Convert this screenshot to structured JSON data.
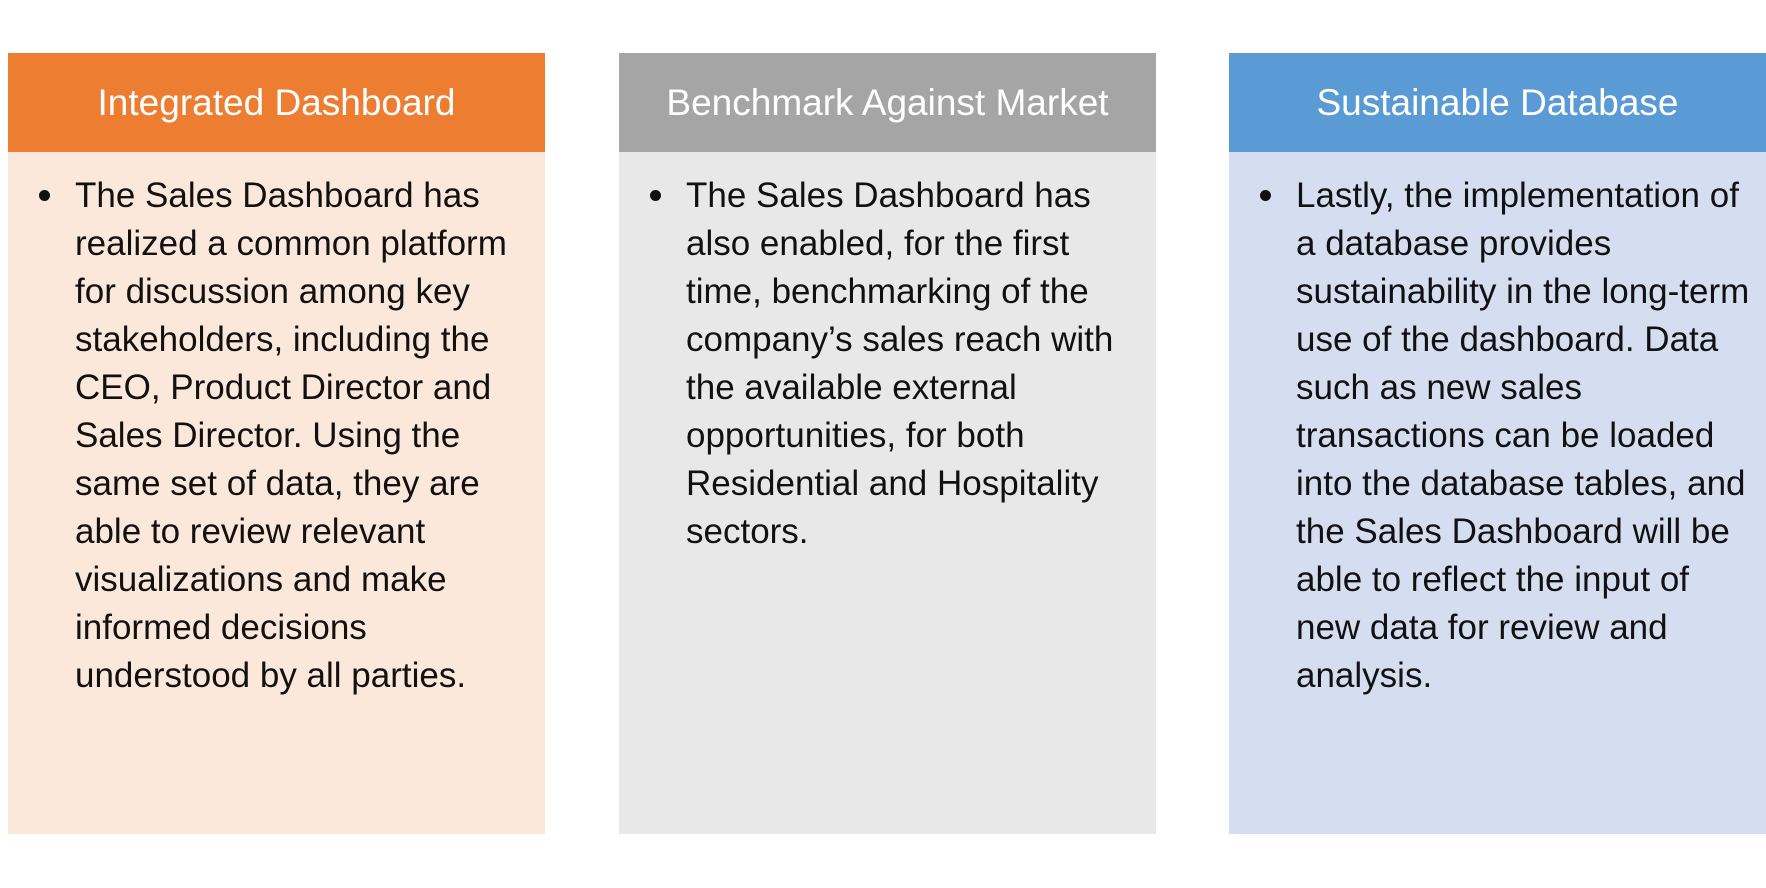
{
  "cards": [
    {
      "title": "Integrated Dashboard",
      "header_color": "#ED7D31",
      "body_color": "#FBE8DA",
      "bullet": "The Sales Dashboard has realized a common platform for discussion among key stakeholders, including the CEO, Product Director and Sales Director. Using the same set of data, they are able to review relevant visualizations and make informed decisions understood by all parties."
    },
    {
      "title": "Benchmark Against Market",
      "header_color": "#A5A5A5",
      "body_color": "#E8E8E8",
      "bullet": "The Sales Dashboard has also enabled, for the first time, benchmarking of the company’s sales reach with the available external opportunities, for both Residential and Hospitality sectors."
    },
    {
      "title": "Sustainable Database",
      "header_color": "#5B9BD5",
      "body_color": "#D5DEF0",
      "bullet": "Lastly, the implementation of a database provides sustainability in the long-term use of the dashboard. Data such as new sales transactions can be loaded into the database tables, and the Sales Dashboard will be able to reflect the input of new data for review and analysis."
    }
  ]
}
